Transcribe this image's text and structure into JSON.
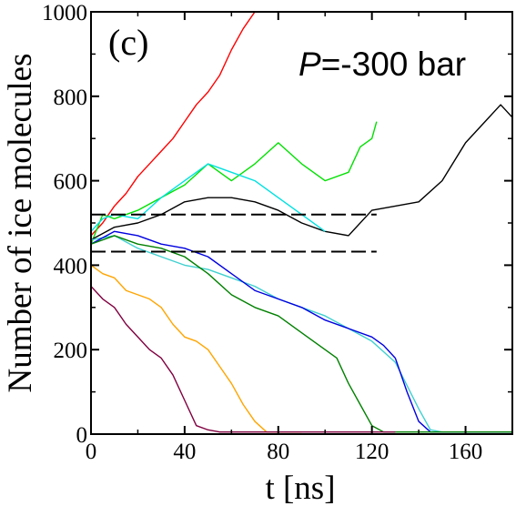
{
  "chart_data": {
    "type": "line",
    "xlabel": "t [ns]",
    "ylabel": "Number of ice molecules",
    "xlim": [
      0,
      180
    ],
    "ylim": [
      0,
      1000
    ],
    "xticks": [
      0,
      40,
      80,
      120,
      160
    ],
    "yticks": [
      0,
      200,
      400,
      600,
      800,
      1000
    ],
    "grid": false,
    "legend": "none",
    "annotations": {
      "panel": "(c)",
      "pressure_symbol": "P",
      "pressure_value": "=-300 bar"
    },
    "reference_lines": [
      {
        "y": 520,
        "x": [
          0,
          122
        ],
        "style": "dashed",
        "color": "#000000"
      },
      {
        "y": 432,
        "x": [
          0,
          122
        ],
        "style": "dashed",
        "color": "#000000"
      }
    ],
    "series": [
      {
        "color": "#ff0000",
        "x": [
          0,
          5,
          10,
          15,
          20,
          25,
          30,
          35,
          40,
          45,
          50,
          55,
          60,
          65,
          70
        ],
        "y": [
          470,
          500,
          540,
          570,
          610,
          640,
          670,
          700,
          740,
          780,
          810,
          850,
          910,
          960,
          1000
        ]
      },
      {
        "color": "#00e000",
        "x": [
          0,
          5,
          10,
          20,
          30,
          40,
          50,
          60,
          70,
          80,
          90,
          100,
          110,
          115,
          120,
          122
        ],
        "y": [
          450,
          520,
          510,
          530,
          560,
          590,
          640,
          600,
          640,
          690,
          640,
          600,
          620,
          680,
          700,
          740
        ]
      },
      {
        "color": "#000000",
        "x": [
          0,
          10,
          20,
          30,
          40,
          50,
          60,
          70,
          80,
          90,
          100,
          110,
          120,
          130,
          140,
          150,
          160,
          170,
          175,
          180
        ],
        "y": [
          460,
          490,
          500,
          520,
          550,
          560,
          560,
          550,
          530,
          500,
          480,
          470,
          530,
          540,
          550,
          600,
          690,
          750,
          780,
          750
        ]
      },
      {
        "color": "#00e0e0",
        "x": [
          0,
          5,
          10,
          20,
          30,
          40,
          50,
          60,
          70,
          80,
          90,
          100
        ],
        "y": [
          480,
          510,
          520,
          510,
          560,
          600,
          640,
          620,
          600,
          560,
          520,
          480
        ]
      },
      {
        "color": "#40d0d0",
        "x": [
          0,
          10,
          20,
          30,
          40,
          50,
          60,
          70,
          80,
          90,
          100,
          110,
          120,
          130,
          140,
          145,
          150,
          160,
          170,
          180
        ],
        "y": [
          460,
          470,
          440,
          420,
          400,
          390,
          370,
          350,
          320,
          300,
          280,
          250,
          220,
          170,
          60,
          10,
          5,
          5,
          5,
          5
        ]
      },
      {
        "color": "#0000e0",
        "x": [
          0,
          10,
          20,
          30,
          40,
          50,
          60,
          70,
          80,
          90,
          100,
          110,
          120,
          125,
          130,
          135,
          140,
          145,
          150,
          160,
          170,
          180
        ],
        "y": [
          450,
          480,
          470,
          450,
          440,
          420,
          380,
          340,
          320,
          300,
          270,
          250,
          230,
          210,
          180,
          100,
          30,
          5,
          5,
          5,
          5,
          5
        ]
      },
      {
        "color": "#008000",
        "x": [
          0,
          10,
          20,
          30,
          40,
          50,
          60,
          70,
          80,
          90,
          100,
          105,
          110,
          115,
          120,
          125,
          130,
          140,
          150,
          160,
          170,
          180
        ],
        "y": [
          450,
          470,
          450,
          440,
          420,
          380,
          330,
          300,
          280,
          240,
          200,
          180,
          120,
          70,
          20,
          5,
          5,
          5,
          5,
          5,
          5,
          5
        ]
      },
      {
        "color": "#ffa500",
        "x": [
          0,
          5,
          10,
          15,
          20,
          25,
          30,
          35,
          40,
          45,
          50,
          55,
          60,
          65,
          70,
          75,
          80,
          85,
          90
        ],
        "y": [
          400,
          380,
          370,
          340,
          330,
          320,
          300,
          260,
          230,
          220,
          200,
          160,
          120,
          70,
          30,
          5,
          5,
          5,
          5
        ]
      },
      {
        "color": "#800040",
        "x": [
          0,
          5,
          10,
          15,
          20,
          25,
          30,
          35,
          40,
          45,
          50,
          55,
          60,
          70,
          80,
          90,
          100,
          110,
          120,
          130
        ],
        "y": [
          350,
          320,
          300,
          260,
          230,
          200,
          180,
          140,
          80,
          20,
          10,
          5,
          5,
          5,
          5,
          5,
          5,
          5,
          5,
          5
        ]
      }
    ]
  }
}
